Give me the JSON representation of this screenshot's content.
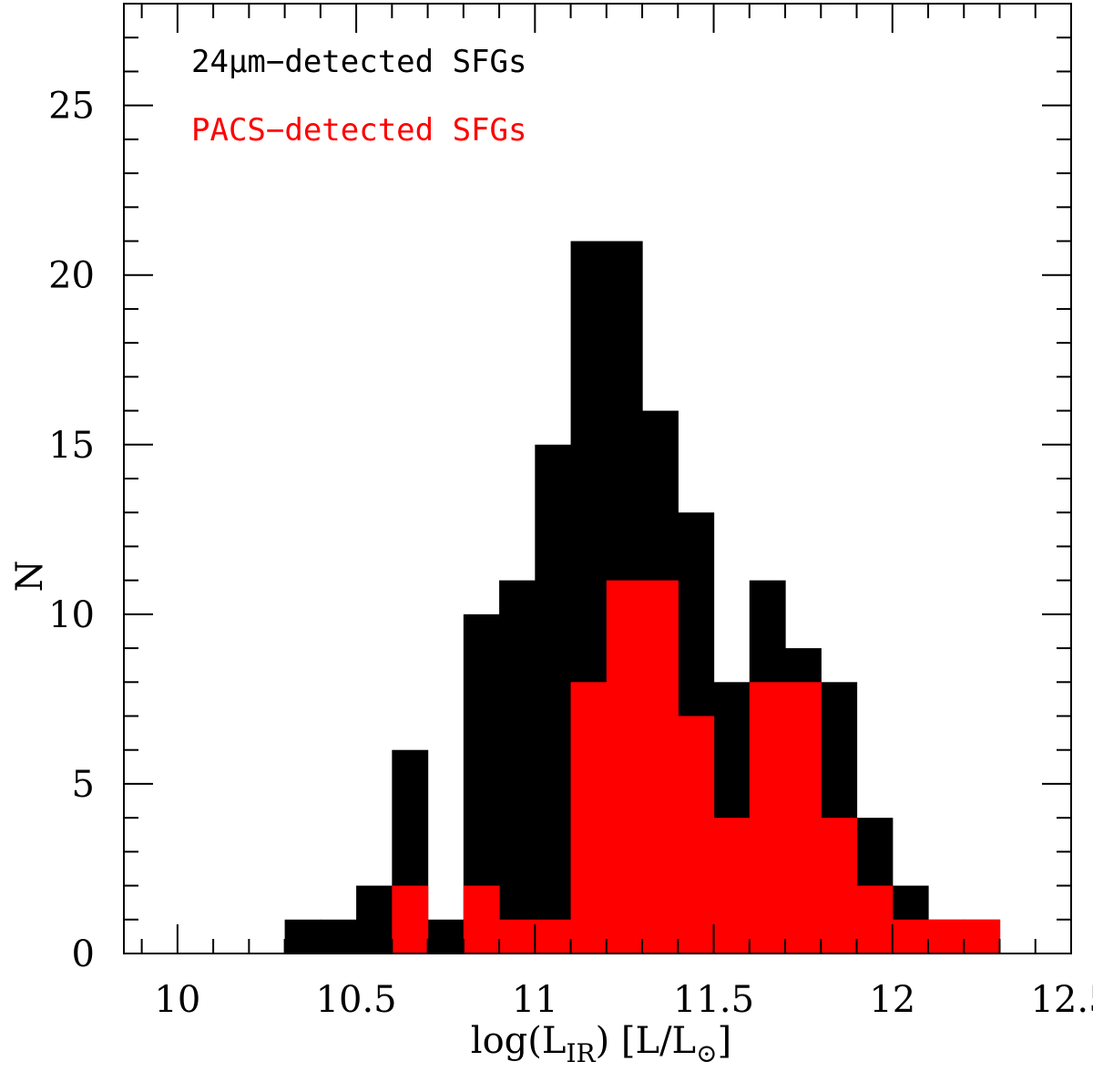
{
  "chart_data": {
    "type": "bar",
    "bin_width": 0.1,
    "xlim": [
      9.85,
      12.5
    ],
    "ylim": [
      0,
      28
    ],
    "x_ticks": [
      {
        "value": 10,
        "label": "10"
      },
      {
        "value": 10.5,
        "label": "10.5"
      },
      {
        "value": 11,
        "label": "11"
      },
      {
        "value": 11.5,
        "label": "11.5"
      },
      {
        "value": 12,
        "label": "12"
      },
      {
        "value": 12.5,
        "label": "12.5"
      }
    ],
    "y_ticks": [
      {
        "value": 0,
        "label": "0"
      },
      {
        "value": 5,
        "label": "5"
      },
      {
        "value": 10,
        "label": "10"
      },
      {
        "value": 15,
        "label": "15"
      },
      {
        "value": 20,
        "label": "20"
      },
      {
        "value": 25,
        "label": "25"
      }
    ],
    "xlabel": "log(L_IR)   [L/L_⊙]",
    "xlabel_parts": {
      "pre": "log(L",
      "sub": "IR",
      "mid": ")   [L/L",
      "sub2": "⊙",
      "post": "]"
    },
    "ylabel": "N",
    "series": [
      {
        "name": "24μm−detected SFGs",
        "color": "#000000",
        "bin_starts": [
          10.3,
          10.4,
          10.5,
          10.6,
          10.7,
          10.8,
          10.9,
          11.0,
          11.1,
          11.2,
          11.3,
          11.4,
          11.5,
          11.6,
          11.7,
          11.8,
          11.9,
          12.0,
          12.1,
          12.2
        ],
        "values": [
          1,
          1,
          2,
          6,
          1,
          10,
          11,
          15,
          21,
          21,
          16,
          13,
          8,
          11,
          9,
          8,
          4,
          2,
          1,
          1
        ]
      },
      {
        "name": "PACS−detected SFGs",
        "color": "#ff0000",
        "bin_starts": [
          10.3,
          10.4,
          10.5,
          10.6,
          10.7,
          10.8,
          10.9,
          11.0,
          11.1,
          11.2,
          11.3,
          11.4,
          11.5,
          11.6,
          11.7,
          11.8,
          11.9,
          12.0,
          12.1,
          12.2
        ],
        "values": [
          0,
          0,
          0,
          2,
          0,
          2,
          1,
          1,
          8,
          11,
          11,
          7,
          4,
          8,
          8,
          4,
          2,
          1,
          1,
          1
        ]
      }
    ],
    "legend_position": "top-left",
    "grid": false
  }
}
